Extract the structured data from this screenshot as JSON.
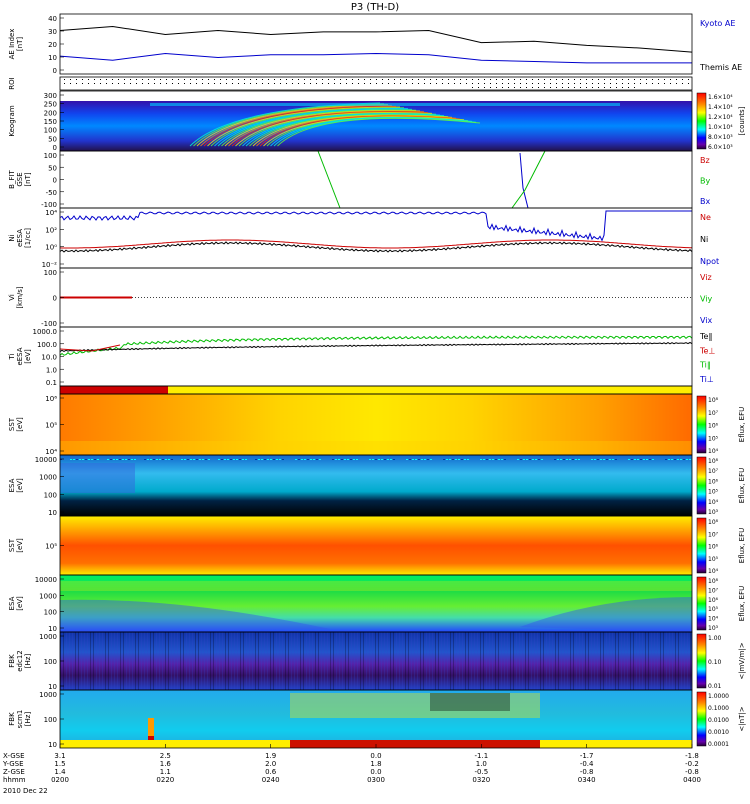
{
  "title": "P3 (TH-D)",
  "date": "2010 Dec 22",
  "colors": {
    "kyoto": "#000000",
    "themis": "#0000cc",
    "red": "#cc0000",
    "green": "#00bb00",
    "blue": "#0000cc",
    "black": "#000000"
  },
  "panels": [
    {
      "id": "ae",
      "ylabel": [
        "AE Index",
        "[nT]"
      ],
      "ticks": [
        "40",
        "30",
        "20",
        "10",
        "0"
      ],
      "legend": [
        {
          "text": "Kyoto AE",
          "color": "#0000cc"
        },
        {
          "text": "Themis AE",
          "color": "#000000"
        }
      ]
    },
    {
      "id": "roi",
      "ylabel": [
        "ROI"
      ],
      "ticks": [],
      "legend": []
    },
    {
      "id": "keo",
      "ylabel": [
        "Keogram"
      ],
      "ticks": [
        "300",
        "250",
        "200",
        "150",
        "100",
        "50",
        "0"
      ],
      "legend": [],
      "cbar": {
        "ticks": [
          "1.6×10⁴",
          "1.4×10⁴",
          "1.2×10⁴",
          "1.0×10⁴",
          "8.0×10³",
          "6.0×10³"
        ],
        "label": "[counts]"
      }
    },
    {
      "id": "bfit",
      "ylabel": [
        "B_FIT",
        "GSE",
        "[nT]"
      ],
      "ticks": [
        "100",
        "50",
        "0",
        "-50",
        "-100"
      ],
      "legend": [
        {
          "text": "Bz",
          "color": "#cc0000"
        },
        {
          "text": "By",
          "color": "#00bb00"
        },
        {
          "text": "Bx",
          "color": "#0000cc"
        }
      ]
    },
    {
      "id": "ni",
      "ylabel": [
        "Ni",
        "eESA",
        "[1/cc]"
      ],
      "ticks": [
        "10⁴",
        "10²",
        "10⁰",
        "10⁻²"
      ],
      "legend": [
        {
          "text": "Ne",
          "color": "#cc0000"
        },
        {
          "text": "Ni",
          "color": "#000000"
        },
        {
          "text": "Npot",
          "color": "#0000cc"
        }
      ]
    },
    {
      "id": "vi",
      "ylabel": [
        "Vi",
        "[km/s]"
      ],
      "ticks": [
        "100",
        "0",
        "-100"
      ],
      "legend": [
        {
          "text": "Viz",
          "color": "#cc0000"
        },
        {
          "text": "Viy",
          "color": "#00bb00"
        },
        {
          "text": "Vix",
          "color": "#0000cc"
        }
      ]
    },
    {
      "id": "ti",
      "ylabel": [
        "Ti",
        "eESA",
        "[eV]"
      ],
      "ticks": [
        "1000.0",
        "100.0",
        "10.0",
        "1.0",
        "0.1"
      ],
      "legend": [
        {
          "text": "Te‖",
          "color": "#000000"
        },
        {
          "text": "Te⊥",
          "color": "#cc0000"
        },
        {
          "text": "Ti‖",
          "color": "#00bb00"
        },
        {
          "text": "Ti⊥",
          "color": "#0000cc"
        }
      ]
    },
    {
      "id": "bar",
      "ylabel": [],
      "ticks": [],
      "legend": []
    },
    {
      "id": "sst1",
      "ylabel": [
        "SST",
        "[eV]"
      ],
      "ticks": [
        "10⁶",
        "10⁵",
        "10⁴"
      ],
      "legend": [],
      "cbar": {
        "ticks": [
          "10⁸",
          "10⁷",
          "10⁶",
          "10⁵",
          "10⁴"
        ],
        "label": "Eflux, EFU"
      }
    },
    {
      "id": "esa1",
      "ylabel": [
        "ESA",
        "[eV]"
      ],
      "ticks": [
        "10000",
        "1000",
        "100",
        "10"
      ],
      "legend": [],
      "cbar": {
        "ticks": [
          "10⁸",
          "10⁷",
          "10⁶",
          "10⁵",
          "10⁴",
          "10³"
        ],
        "label": "Eflux, EFU"
      }
    },
    {
      "id": "sst2",
      "ylabel": [
        "SST",
        "[eV]"
      ],
      "ticks": [
        "10⁵"
      ],
      "legend": [],
      "cbar": {
        "ticks": [
          "10⁸",
          "10⁷",
          "10⁶",
          "10⁵",
          "10⁴"
        ],
        "label": "Eflux, EFU"
      }
    },
    {
      "id": "esa2",
      "ylabel": [
        "ESA",
        "[eV]"
      ],
      "ticks": [
        "10000",
        "1000",
        "100",
        "10"
      ],
      "legend": [],
      "cbar": {
        "ticks": [
          "10⁸",
          "10⁷",
          "10⁶",
          "10⁵",
          "10⁴",
          "10³"
        ],
        "label": "Eflux, EFU"
      }
    },
    {
      "id": "fbk1",
      "ylabel": [
        "FBK",
        "edc12",
        "[Hz]"
      ],
      "ticks": [
        "1000",
        "100",
        "10"
      ],
      "legend": [],
      "cbar": {
        "ticks": [
          "1.00",
          "0.10",
          "0.01"
        ],
        "label": "<|mV/m|>"
      }
    },
    {
      "id": "fbk2",
      "ylabel": [
        "FBK",
        "scm1",
        "[Hz]"
      ],
      "ticks": [
        "1000",
        "100",
        "10"
      ],
      "legend": [],
      "cbar": {
        "ticks": [
          "1.0000",
          "0.1000",
          "0.0100",
          "0.0010",
          "0.0001"
        ],
        "label": "<|nT|>"
      }
    }
  ],
  "xaxis": {
    "row_labels": [
      "X-GSE",
      "Y-GSE",
      "Z-GSE",
      "hhmm"
    ],
    "columns": [
      [
        "3.1",
        "1.5",
        "1.4",
        "0200"
      ],
      [
        "2.5",
        "1.6",
        "1.1",
        "0220"
      ],
      [
        "1.9",
        "2.0",
        "0.6",
        "0240"
      ],
      [
        "0.0",
        "1.8",
        "0.0",
        "0300"
      ],
      [
        "-1.1",
        "1.0",
        "-0.5",
        "0320"
      ],
      [
        "-1.7",
        "-0.4",
        "-0.8",
        "0340"
      ],
      [
        "-1.8",
        "-0.2",
        "-0.8",
        "0400"
      ]
    ]
  },
  "chart_data": {
    "type": "line",
    "title": "P3 (TH-D)",
    "x_start": "0200",
    "x_end": "0400",
    "x_ticks": [
      "0200",
      "0220",
      "0240",
      "0300",
      "0320",
      "0340",
      "0400"
    ],
    "ae_index": {
      "ylim": [
        0,
        40
      ],
      "x": [
        "0200",
        "0210",
        "0220",
        "0230",
        "0240",
        "0250",
        "0300",
        "0310",
        "0320",
        "0330",
        "0340",
        "0350",
        "0400"
      ],
      "series": [
        {
          "name": "Kyoto AE",
          "values": [
            30,
            33,
            27,
            30,
            27,
            29,
            29,
            30,
            21,
            22,
            19,
            17,
            14
          ]
        },
        {
          "name": "Themis AE",
          "values": [
            11,
            8,
            13,
            10,
            12,
            12,
            13,
            12,
            8,
            7,
            6,
            6,
            6
          ]
        }
      ]
    },
    "ni_density": {
      "ylim_label": [
        "10⁻²",
        "10⁴"
      ],
      "series": [
        {
          "name": "Npot",
          "values": [
            1000,
            3000,
            5000,
            8000,
            10000,
            10000,
            15000,
            20000,
            30,
            30,
            30000,
            30000,
            30000
          ]
        },
        {
          "name": "Ne",
          "values": [
            1,
            1,
            1,
            1,
            1,
            1.5,
            2,
            2,
            1.5,
            1,
            1,
            1,
            1
          ]
        },
        {
          "name": "Ni",
          "values": [
            0.3,
            0.3,
            0.5,
            0.5,
            0.5,
            0.6,
            0.7,
            0.7,
            0.6,
            0.5,
            0.5,
            0.5,
            0.5
          ]
        }
      ]
    }
  }
}
